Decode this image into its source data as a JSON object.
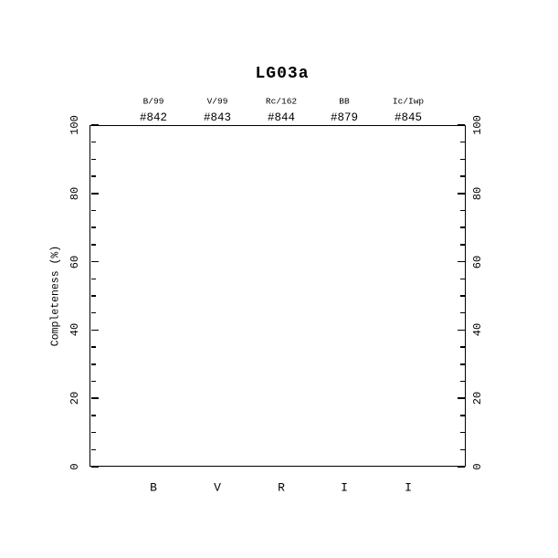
{
  "colors": {
    "foreground": "#000000",
    "background": "#ffffff"
  },
  "chart_data": {
    "type": "scatter",
    "title": "LG03a",
    "xlabel": "",
    "ylabel": "Completeness (%)",
    "ylim": [
      0,
      100
    ],
    "y_major_ticks": [
      0,
      20,
      40,
      60,
      80,
      100
    ],
    "y_minor_tick_step": 5,
    "y_tick_labels_both_sides": true,
    "grid": false,
    "frame": true,
    "legend": false,
    "categories": [
      "B",
      "V",
      "R",
      "I",
      "I"
    ],
    "columns": [
      {
        "filter": "B/99",
        "number": "#842"
      },
      {
        "filter": "V/99",
        "number": "#843"
      },
      {
        "filter": "Rc/162",
        "number": "#844"
      },
      {
        "filter": "BB",
        "number": "#879"
      },
      {
        "filter": "Ic/Iwp",
        "number": "#845"
      }
    ],
    "series": []
  }
}
